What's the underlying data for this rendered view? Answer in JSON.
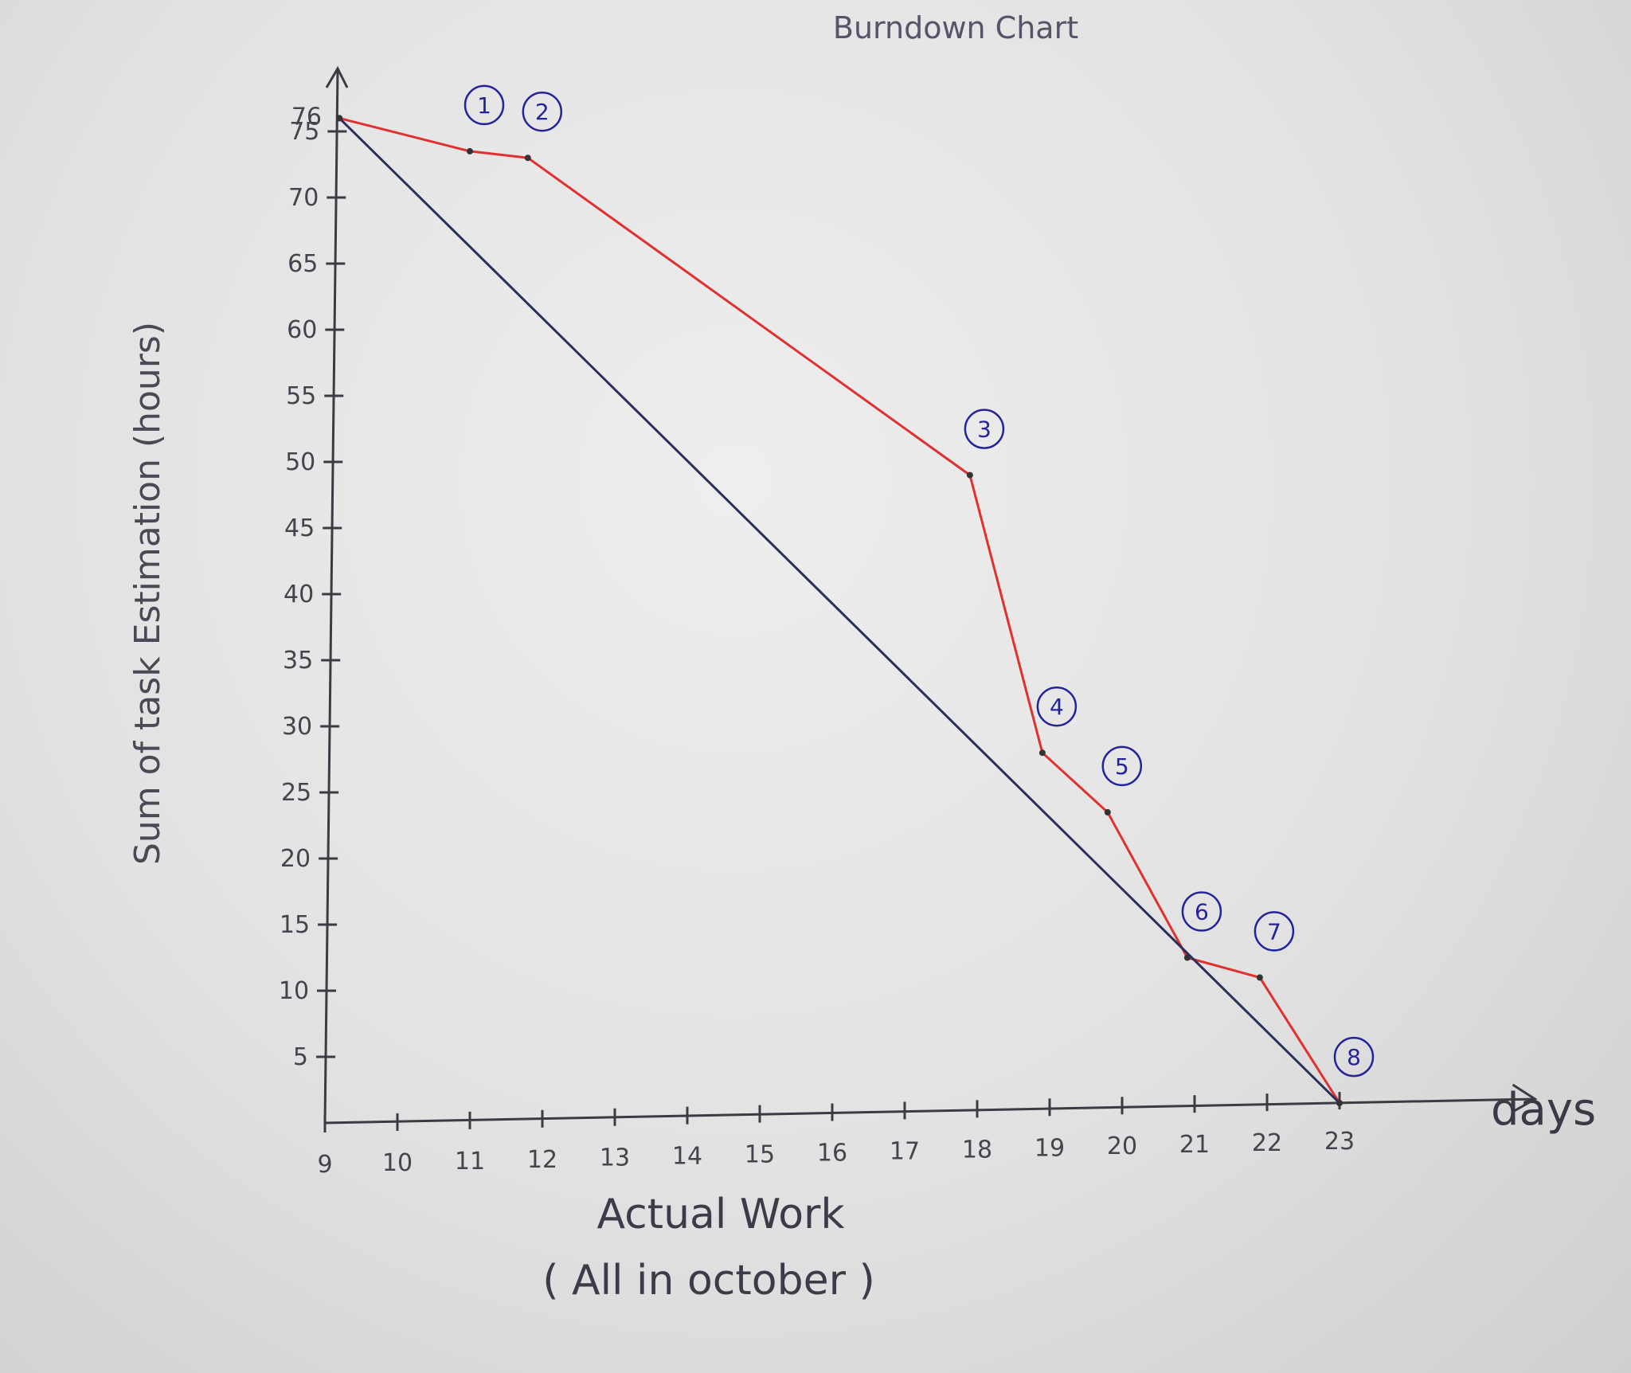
{
  "chart_data": {
    "type": "line",
    "title": "Burndown Chart",
    "xlabel": "Actual Work",
    "xlabel_note": "( All in october )",
    "ylabel": "Sum of task Estimation (hours)",
    "x_axis_arrow_label": "days",
    "x_ticks": [
      9,
      10,
      11,
      12,
      13,
      14,
      15,
      16,
      17,
      18,
      19,
      20,
      21,
      22,
      23
    ],
    "y_ticks": [
      5,
      10,
      15,
      20,
      25,
      30,
      35,
      40,
      45,
      50,
      55,
      60,
      65,
      70,
      75
    ],
    "y_top_label": "76",
    "xlim": [
      9,
      23.5
    ],
    "ylim": [
      0,
      78
    ],
    "series": [
      {
        "name": "",
        "color": "#e03030",
        "x": [
          9.2,
          11,
          11.8,
          17.9,
          18.9,
          19.8,
          20.9,
          21.9,
          23
        ],
        "y": [
          76,
          73.5,
          73,
          49,
          28,
          23.5,
          12.5,
          11,
          1.5
        ]
      },
      {
        "name": "",
        "color": "#2a2f5c",
        "x": [
          9.2,
          23
        ],
        "y": [
          76,
          1.5
        ]
      }
    ],
    "point_markers": [
      {
        "label": "1",
        "x": 11,
        "y": 73.5
      },
      {
        "label": "2",
        "x": 11.8,
        "y": 73
      },
      {
        "label": "3",
        "x": 17.9,
        "y": 49
      },
      {
        "label": "4",
        "x": 18.9,
        "y": 28
      },
      {
        "label": "5",
        "x": 19.8,
        "y": 23.5
      },
      {
        "label": "6",
        "x": 20.9,
        "y": 12.5
      },
      {
        "label": "7",
        "x": 21.9,
        "y": 11
      },
      {
        "label": "8",
        "x": 23,
        "y": 1.5
      }
    ],
    "legend": "none",
    "grid": false
  }
}
